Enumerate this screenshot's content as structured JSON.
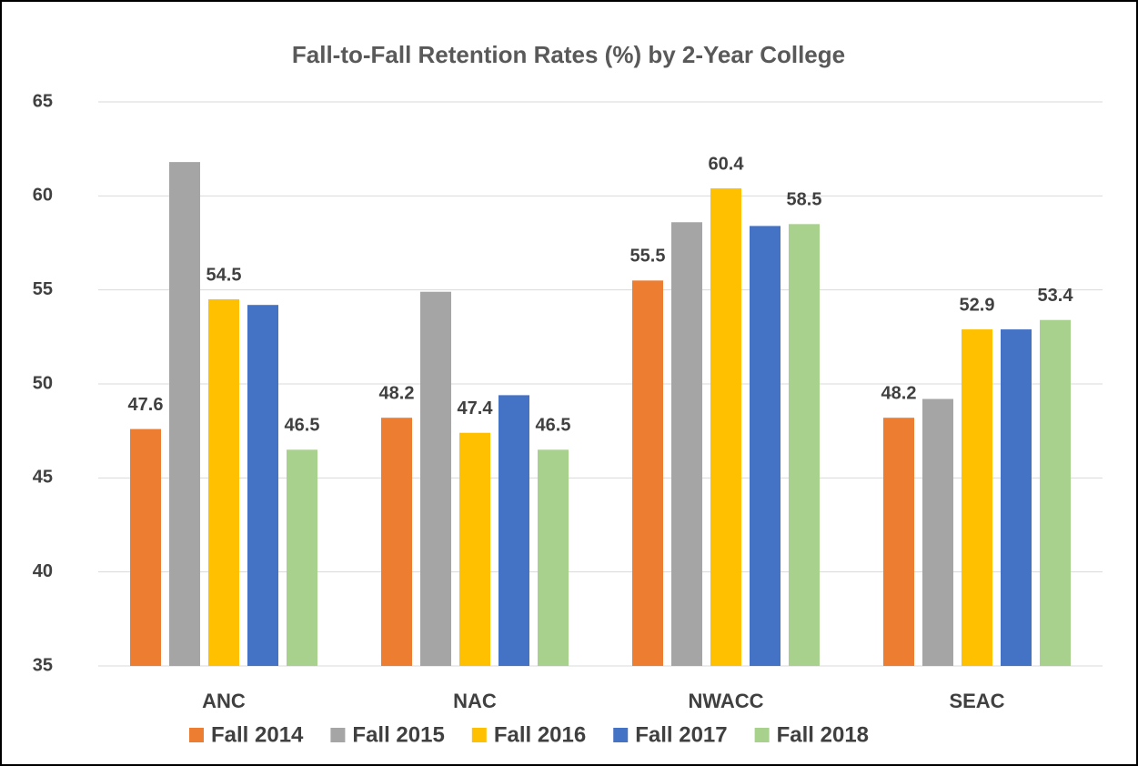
{
  "chart_data": {
    "type": "bar",
    "title": "Fall-to-Fall Retention Rates (%) by 2-Year College",
    "categories": [
      "ANC",
      "NAC",
      "NWACC",
      "SEAC"
    ],
    "series": [
      {
        "name": "Fall 2014",
        "color": "#ed7d31",
        "values": [
          47.6,
          48.2,
          55.5,
          48.2
        ],
        "value_labels": [
          "47.6",
          "48.2",
          "55.5",
          "48.2"
        ]
      },
      {
        "name": "Fall 2015",
        "color": "#a5a5a5",
        "values": [
          61.8,
          54.9,
          58.6,
          49.2
        ],
        "value_labels": [
          null,
          null,
          null,
          null
        ]
      },
      {
        "name": "Fall 2016",
        "color": "#ffc000",
        "values": [
          54.5,
          47.4,
          60.4,
          52.9
        ],
        "value_labels": [
          "54.5",
          "47.4",
          "60.4",
          "52.9"
        ]
      },
      {
        "name": "Fall 2017",
        "color": "#4472c4",
        "values": [
          54.2,
          49.4,
          58.4,
          52.9
        ],
        "value_labels": [
          null,
          null,
          null,
          null
        ]
      },
      {
        "name": "Fall 2018",
        "color": "#a9d18e",
        "values": [
          46.5,
          46.5,
          58.5,
          53.4
        ],
        "value_labels": [
          "46.5",
          "46.5",
          "58.5",
          "53.4"
        ]
      }
    ],
    "ylim": [
      35,
      65
    ],
    "yticks": [
      35,
      40,
      45,
      50,
      55,
      60,
      65
    ],
    "grid": true,
    "legend": "bottom"
  }
}
